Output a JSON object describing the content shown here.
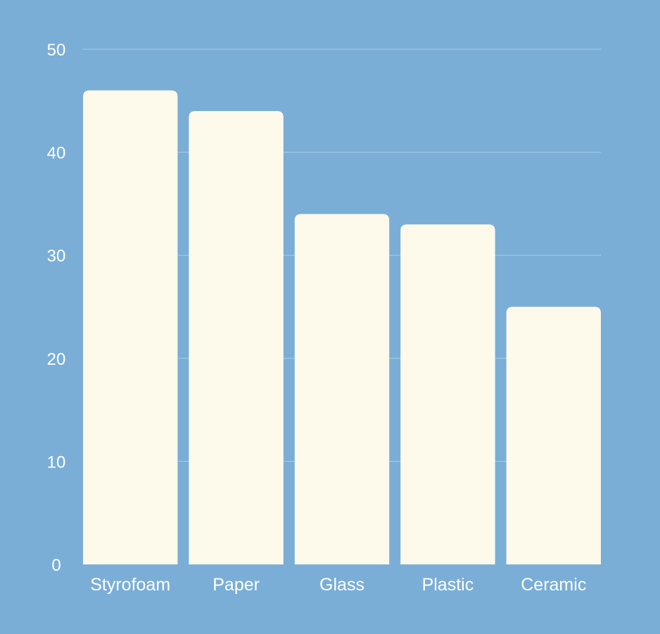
{
  "colors": {
    "background": "#7aaed6",
    "bar": "#fdfaec",
    "text": "#ffffff",
    "grid": "#a8cbe6"
  },
  "chart_data": {
    "type": "bar",
    "title": "",
    "xlabel": "",
    "ylabel": "",
    "categories": [
      "Styrofoam",
      "Paper",
      "Glass",
      "Plastic",
      "Ceramic"
    ],
    "values": [
      46,
      44,
      34,
      33,
      25
    ],
    "ylim": [
      0,
      50
    ],
    "yticks": [
      "0",
      "10",
      "20",
      "30",
      "40",
      "50"
    ],
    "grid": true,
    "legend": "none"
  }
}
